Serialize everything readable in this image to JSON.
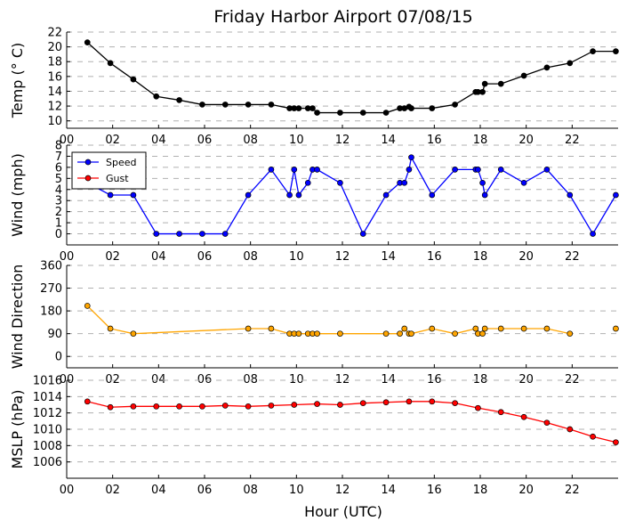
{
  "chart_data": {
    "type": "line",
    "title": "Friday Harbor Airport 07/08/15",
    "xlabel": "Hour (UTC)",
    "xlim": [
      0,
      24
    ],
    "x_ticks": [
      "00",
      "02",
      "04",
      "06",
      "08",
      "10",
      "12",
      "14",
      "16",
      "18",
      "20",
      "22"
    ],
    "panels": [
      {
        "ylabel": "Temp (° C)",
        "ylim": [
          9,
          22
        ],
        "y_ticks": [
          10,
          12,
          14,
          16,
          18,
          20,
          22
        ],
        "grid": true,
        "series": [
          {
            "color": "#000000",
            "marker_fill": "#000000",
            "line": true,
            "x": [
              0.9,
              1.9,
              2.9,
              3.9,
              4.9,
              5.9,
              6.9,
              7.9,
              8.9,
              9.7,
              9.9,
              10.1,
              10.5,
              10.7,
              10.9,
              11.9,
              12.9,
              13.9,
              14.5,
              14.7,
              14.9,
              15.0,
              15.9,
              16.9,
              17.8,
              17.9,
              18.1,
              18.2,
              18.9,
              19.9,
              20.9,
              21.9,
              22.9,
              23.9
            ],
            "y": [
              20.6,
              17.8,
              15.6,
              13.3,
              12.8,
              12.2,
              12.2,
              12.2,
              12.2,
              11.7,
              11.7,
              11.7,
              11.7,
              11.7,
              11.1,
              11.1,
              11.1,
              11.1,
              11.7,
              11.7,
              11.9,
              11.7,
              11.7,
              12.2,
              13.9,
              13.9,
              13.9,
              15.0,
              15.0,
              16.1,
              17.2,
              17.8,
              19.4,
              19.4
            ]
          }
        ]
      },
      {
        "ylabel": "Wind (mph)",
        "ylim": [
          -1,
          8
        ],
        "y_ticks": [
          0,
          1,
          2,
          3,
          4,
          5,
          6,
          7,
          8
        ],
        "grid": true,
        "legend": {
          "position": "upper-left",
          "entries": [
            "Speed",
            "Gust"
          ]
        },
        "series": [
          {
            "name": "Speed",
            "color": "#0000ff",
            "marker_fill": "#0000ff",
            "line": true,
            "x": [
              0.9,
              1.9,
              2.9,
              3.9,
              4.9,
              5.9,
              6.9,
              7.9,
              8.9,
              9.7,
              9.9,
              10.1,
              10.5,
              10.7,
              10.9,
              11.9,
              12.9,
              13.9,
              14.5,
              14.7,
              14.9,
              15.0,
              15.9,
              16.9,
              17.8,
              17.9,
              18.1,
              18.2,
              18.9,
              19.9,
              20.9,
              21.9,
              22.9,
              23.9
            ],
            "y": [
              4.6,
              3.5,
              3.5,
              0,
              0,
              0,
              0,
              3.5,
              5.8,
              3.5,
              5.8,
              3.5,
              4.6,
              5.8,
              5.8,
              4.6,
              0,
              3.5,
              4.6,
              4.6,
              5.8,
              6.9,
              3.5,
              5.8,
              5.8,
              5.8,
              4.6,
              3.5,
              5.8,
              4.6,
              5.8,
              3.5,
              0,
              3.5
            ]
          },
          {
            "name": "Gust",
            "color": "#ff0000",
            "marker_fill": "#ff0000",
            "line": true,
            "x": [],
            "y": []
          }
        ]
      },
      {
        "ylabel": "Wind Direction",
        "ylim": [
          -45,
          360
        ],
        "y_ticks": [
          0,
          90,
          180,
          270,
          360
        ],
        "grid": true,
        "series": [
          {
            "color": "#ffa500",
            "marker_fill": "#ffa500",
            "line": true,
            "x": [
              0.9,
              1.9,
              2.9,
              7.9,
              8.9,
              9.7,
              9.9,
              10.1,
              10.5,
              10.7,
              10.9,
              11.9,
              13.9,
              14.5,
              14.7,
              14.9,
              15.0,
              15.9,
              16.9,
              17.8,
              17.9,
              18.1,
              18.2,
              18.9,
              19.9,
              20.9,
              21.9
            ],
            "y": [
              200,
              110,
              90,
              110,
              110,
              90,
              90,
              90,
              90,
              90,
              90,
              90,
              90,
              90,
              110,
              90,
              90,
              110,
              90,
              110,
              90,
              90,
              110,
              110,
              110,
              110,
              90
            ]
          },
          {
            "color": "#ffa500",
            "marker_fill": "#ffa500",
            "line": false,
            "x": [
              23.9
            ],
            "y": [
              110
            ]
          }
        ]
      },
      {
        "ylabel": "MSLP (hPa)",
        "ylim": [
          1004,
          1016
        ],
        "y_ticks": [
          1006,
          1008,
          1010,
          1012,
          1014,
          1016
        ],
        "grid": true,
        "series": [
          {
            "color": "#ff0000",
            "marker_fill": "#ff0000",
            "line": true,
            "x": [
              0.9,
              1.9,
              2.9,
              3.9,
              4.9,
              5.9,
              6.9,
              7.9,
              8.9,
              9.9,
              10.9,
              11.9,
              12.9,
              13.9,
              14.9,
              15.9,
              16.9,
              17.9,
              18.9,
              19.9,
              20.9,
              21.9,
              22.9,
              23.9
            ],
            "y": [
              1013.4,
              1012.7,
              1012.8,
              1012.8,
              1012.8,
              1012.8,
              1012.9,
              1012.8,
              1012.9,
              1013.0,
              1013.1,
              1013.0,
              1013.2,
              1013.3,
              1013.4,
              1013.4,
              1013.2,
              1012.6,
              1012.1,
              1011.5,
              1010.8,
              1010.0,
              1009.1,
              1008.4
            ]
          }
        ]
      }
    ]
  }
}
